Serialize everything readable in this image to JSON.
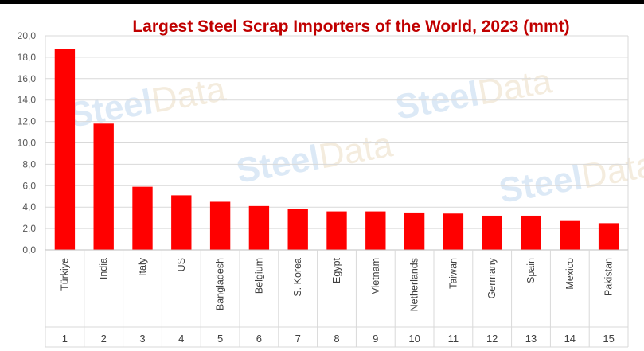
{
  "chart_data": {
    "type": "bar",
    "title": "Largest Steel Scrap Importers of the World, 2023 (mmt)",
    "categories": [
      "Türkiye",
      "India",
      "Italy",
      "US",
      "Bangladesh",
      "Belgium",
      "S. Korea",
      "Egypt",
      "Vietnam",
      "Netherlands",
      "Taiwan",
      "Germany",
      "Spain",
      "Mexico",
      "Pakistan"
    ],
    "ranks": [
      "1",
      "2",
      "3",
      "4",
      "5",
      "6",
      "7",
      "8",
      "9",
      "10",
      "11",
      "12",
      "13",
      "14",
      "15"
    ],
    "values": [
      18.8,
      11.8,
      5.9,
      5.1,
      4.5,
      4.1,
      3.8,
      3.6,
      3.6,
      3.5,
      3.4,
      3.2,
      3.2,
      2.7,
      2.5
    ],
    "ylim": [
      0,
      20
    ],
    "yticks": [
      "0,0",
      "2,0",
      "4,0",
      "6,0",
      "8,0",
      "10,0",
      "12,0",
      "14,0",
      "16,0",
      "18,0",
      "20,0"
    ],
    "xlabel": "",
    "ylabel": "",
    "grid": true,
    "bar_color": "#ff0000"
  },
  "watermark": {
    "part1": "Steel",
    "part2": "Data"
  },
  "colors": {
    "title": "#c00000",
    "bar": "#ff0000"
  }
}
